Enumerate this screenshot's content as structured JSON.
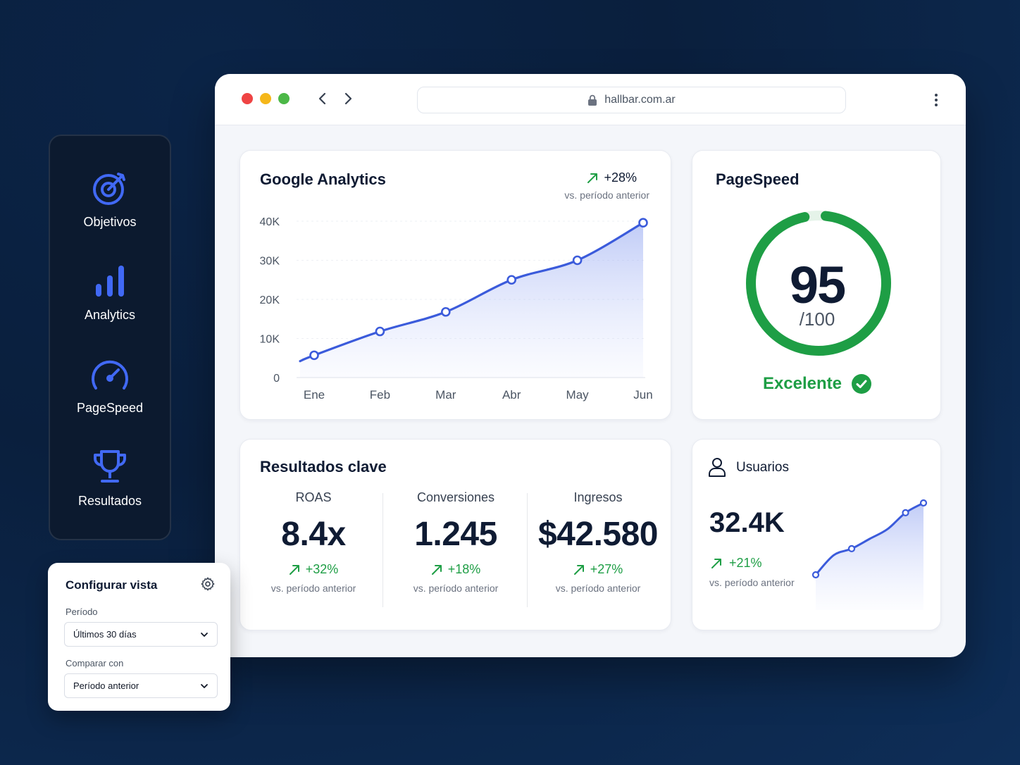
{
  "browser": {
    "url": "hallbar.com.ar"
  },
  "analytics": {
    "title": "Google Analytics",
    "delta": "+28%",
    "delta_sub": "vs. período anterior"
  },
  "pagespeed": {
    "title": "PageSpeed",
    "score": "95",
    "max": "/100",
    "status": "Excelente",
    "score_value": 95,
    "color": "#1e9e45"
  },
  "results": {
    "title": "Resultados clave",
    "metrics": [
      {
        "label": "ROAS",
        "value": "8.4x",
        "delta": "+32%",
        "sub": "vs. período anterior"
      },
      {
        "label": "Conversiones",
        "value": "1.245",
        "delta": "+18%",
        "sub": "vs. período anterior"
      },
      {
        "label": "Ingresos",
        "value": "$42.580",
        "delta": "+27%",
        "sub": "vs. período anterior"
      }
    ]
  },
  "users": {
    "title": "Usuarios",
    "value": "32.4K",
    "delta": "+21%",
    "sub": "vs. período anterior"
  },
  "sidenav": {
    "items": [
      {
        "label": "Objetivos",
        "icon": "target-icon"
      },
      {
        "label": "Analytics",
        "icon": "bar-chart-icon"
      },
      {
        "label": "PageSpeed",
        "icon": "speedometer-icon"
      },
      {
        "label": "Resultados",
        "icon": "trophy-icon"
      }
    ]
  },
  "config": {
    "title": "Configurar vista",
    "period_label": "Período",
    "period_value": "Últimos 30 días",
    "compare_label": "Comparar con",
    "compare_value": "Período anterior"
  },
  "colors": {
    "accent": "#3b5bdb",
    "positive": "#1e9e45",
    "nav_bg": "#0c1a2f"
  },
  "chart_data": [
    {
      "type": "area",
      "categories": [
        "Ene",
        "Feb",
        "Mar",
        "Abr",
        "May",
        "Jun"
      ],
      "y_ticks": [
        "0",
        "10K",
        "20K",
        "30K",
        "40K"
      ],
      "ylim": [
        0,
        40000
      ],
      "series": [
        {
          "values": [
            5700,
            11800,
            16800,
            25000,
            30000,
            39600
          ]
        }
      ],
      "grid": true
    },
    {
      "type": "area",
      "series": [
        {
          "values": [
            1,
            4,
            5,
            6.5,
            8,
            10.5,
            12
          ]
        }
      ],
      "grid": false
    }
  ]
}
